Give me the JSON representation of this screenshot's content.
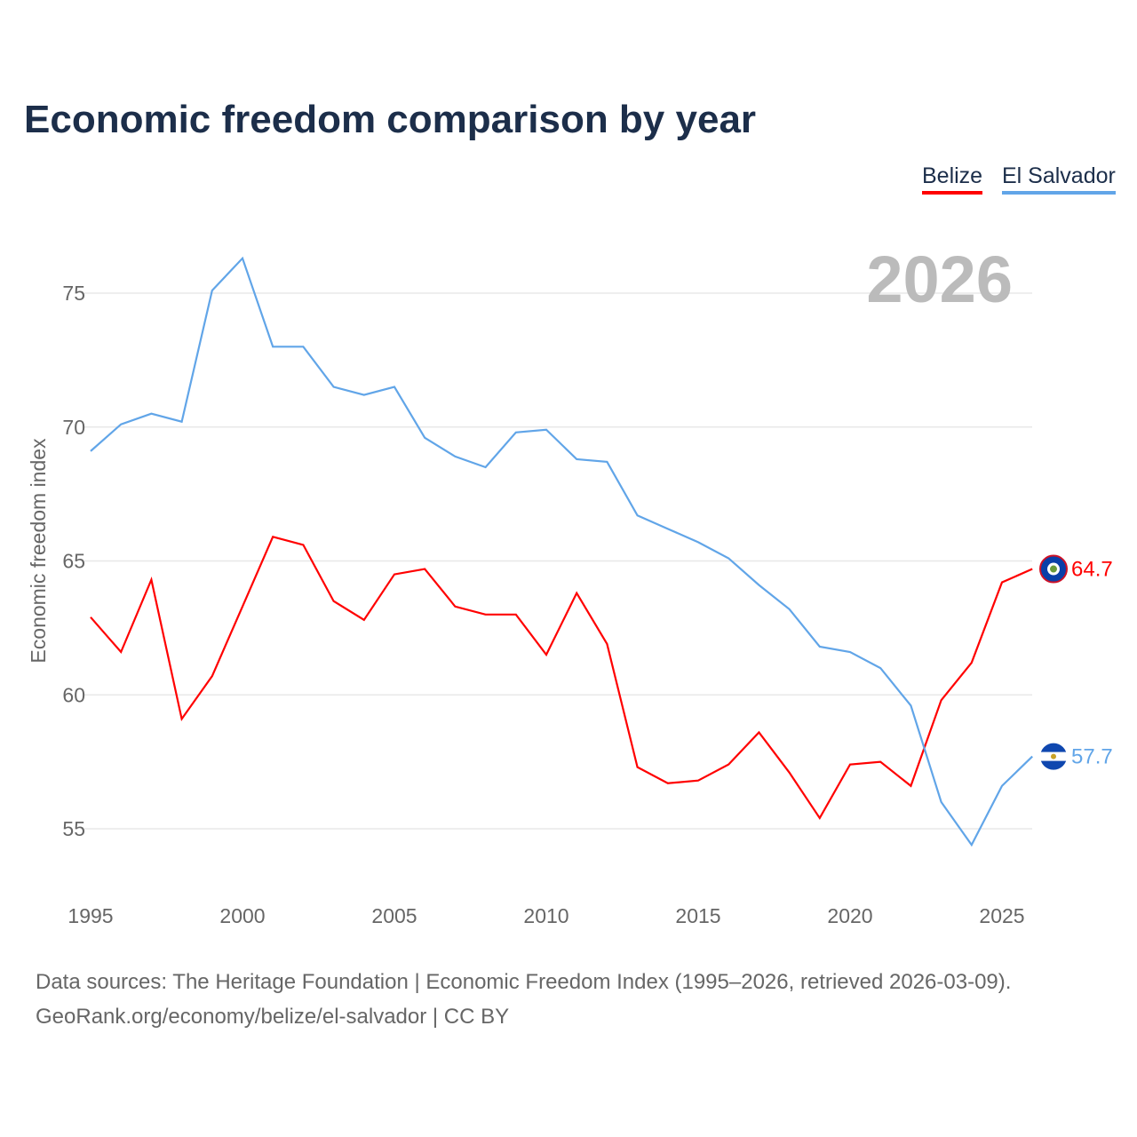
{
  "title": "Economic freedom comparison by year",
  "chart_data": {
    "type": "line",
    "title": "Economic freedom comparison by year",
    "ylabel": "Economic freedom index",
    "xlabel": "",
    "year_label": "2026",
    "x": [
      1995,
      1996,
      1997,
      1998,
      1999,
      2000,
      2001,
      2002,
      2003,
      2004,
      2005,
      2006,
      2007,
      2008,
      2009,
      2010,
      2011,
      2012,
      2013,
      2014,
      2015,
      2016,
      2017,
      2018,
      2019,
      2020,
      2021,
      2022,
      2023,
      2024,
      2025,
      2026
    ],
    "xlim": [
      1995,
      2026
    ],
    "ylim": [
      52.5,
      77
    ],
    "xticks": [
      "1995",
      "2000",
      "2005",
      "2010",
      "2015",
      "2020",
      "2025"
    ],
    "yticks": [
      "55",
      "60",
      "65",
      "70",
      "75"
    ],
    "grid": true,
    "legend_position": "top-right",
    "series": [
      {
        "name": "Belize",
        "color": "#ff0000",
        "end_label": "64.7",
        "values": [
          62.9,
          61.6,
          64.3,
          59.1,
          60.7,
          63.3,
          65.9,
          65.6,
          63.5,
          62.8,
          64.5,
          64.7,
          63.3,
          63.0,
          63.0,
          61.5,
          63.8,
          61.9,
          57.3,
          56.7,
          56.8,
          57.4,
          58.6,
          57.1,
          55.4,
          57.4,
          57.5,
          56.6,
          59.8,
          61.2,
          64.2,
          64.7
        ]
      },
      {
        "name": "El Salvador",
        "color": "#61a5e8",
        "end_label": "57.7",
        "values": [
          69.1,
          70.1,
          70.5,
          70.2,
          75.1,
          76.3,
          73.0,
          73.0,
          71.5,
          71.2,
          71.5,
          69.6,
          68.9,
          68.5,
          69.8,
          69.9,
          68.8,
          68.7,
          66.7,
          66.2,
          65.7,
          65.1,
          64.1,
          63.2,
          61.8,
          61.6,
          61.0,
          59.6,
          56.0,
          54.4,
          56.6,
          57.7
        ]
      }
    ]
  },
  "footer": {
    "line1": "Data sources: The Heritage Foundation | Economic Freedom Index (1995–2026, retrieved 2026-03-09).",
    "line2": "GeoRank.org/economy/belize/el-salvador | CC BY"
  }
}
